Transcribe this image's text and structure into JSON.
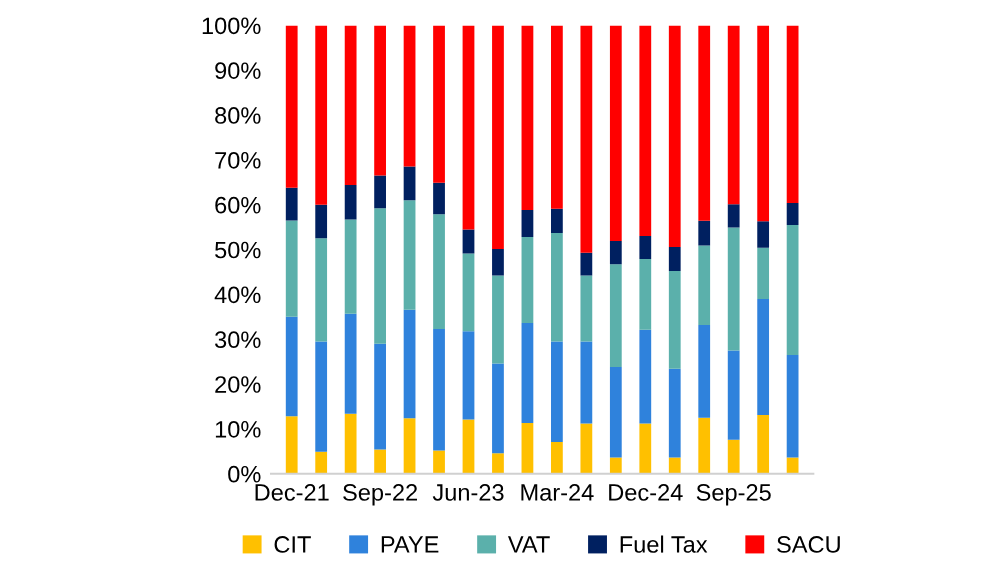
{
  "chart_data": {
    "type": "bar",
    "stacked": true,
    "categories": [
      "Dec-21",
      null,
      null,
      "Sep-22",
      null,
      null,
      "Jun-23",
      null,
      null,
      "Mar-24",
      null,
      null,
      "Dec-24",
      null,
      null,
      "Sep-25",
      null,
      null
    ],
    "series": [
      {
        "name": "CIT",
        "color": "#ffc000",
        "values": [
          12.8,
          4.9,
          13.4,
          5.4,
          12.4,
          5.2,
          12.1,
          4.6,
          11.3,
          7.1,
          11.2,
          3.6,
          11.2,
          3.6,
          12.5,
          7.6,
          13.1,
          3.6
        ]
      },
      {
        "name": "PAYE",
        "color": "#2f82dc",
        "values": [
          22.2,
          24.6,
          22.3,
          23.6,
          24.2,
          27.1,
          19.7,
          20.0,
          22.3,
          22.4,
          18.3,
          20.2,
          20.9,
          19.8,
          20.7,
          19.9,
          25.9,
          22.9
        ]
      },
      {
        "name": "VAT",
        "color": "#5bb0ab",
        "values": [
          21.5,
          23.0,
          21.0,
          30.2,
          24.4,
          25.6,
          17.3,
          19.6,
          19.2,
          24.2,
          14.7,
          22.9,
          15.8,
          21.8,
          17.7,
          27.4,
          11.4,
          29.0
        ]
      },
      {
        "name": "Fuel Tax",
        "color": "#002060",
        "values": [
          7.3,
          7.5,
          7.7,
          7.3,
          7.5,
          7.0,
          5.4,
          5.9,
          6.0,
          5.4,
          5.1,
          5.2,
          5.1,
          5.4,
          5.5,
          5.2,
          5.9,
          4.9
        ]
      },
      {
        "name": "SACU",
        "color": "#ff0000",
        "values": [
          36.2,
          40.0,
          35.6,
          33.5,
          31.5,
          35.1,
          45.5,
          49.9,
          41.2,
          40.9,
          50.7,
          48.1,
          47.0,
          49.4,
          43.6,
          39.9,
          43.7,
          39.6
        ]
      }
    ],
    "ylim": [
      0,
      100
    ],
    "yticks": [
      {
        "value": 0,
        "label": "0%"
      },
      {
        "value": 10,
        "label": "10%"
      },
      {
        "value": 20,
        "label": "20%"
      },
      {
        "value": 30,
        "label": "30%"
      },
      {
        "value": 40,
        "label": "40%"
      },
      {
        "value": 50,
        "label": "50%"
      },
      {
        "value": 60,
        "label": "60%"
      },
      {
        "value": 70,
        "label": "70%"
      },
      {
        "value": 80,
        "label": "80%"
      },
      {
        "value": 90,
        "label": "90%"
      },
      {
        "value": 100,
        "label": "100%"
      }
    ],
    "grid": false,
    "legend": "bottom"
  }
}
